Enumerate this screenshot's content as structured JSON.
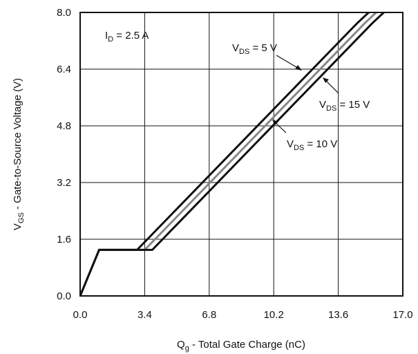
{
  "chart_data": {
    "type": "line",
    "title": "",
    "xlabel": {
      "main": "Q",
      "sub": "g",
      "rest": " - Total Gate Charge (nC)"
    },
    "ylabel": {
      "main": "V",
      "sub": "GS",
      "rest": " - Gate-to-Source Voltage (V)"
    },
    "xlim": [
      0.0,
      17.0
    ],
    "ylim": [
      0.0,
      8.0
    ],
    "x_ticks": [
      "0.0",
      "3.4",
      "6.8",
      "10.2",
      "13.6",
      "17.0"
    ],
    "y_ticks": [
      "0.0",
      "1.6",
      "3.2",
      "4.8",
      "6.4",
      "8.0"
    ],
    "grid": true,
    "legend": "none",
    "condition": {
      "main": "I",
      "sub": "D",
      "rest": " = 2.5 A"
    },
    "series": [
      {
        "name": {
          "main": "V",
          "sub": "DS",
          "rest": " = 5 V"
        },
        "color": "#111111",
        "x": [
          0.0,
          1.0,
          3.0,
          14.6,
          15.2
        ],
        "y": [
          0.0,
          1.3,
          1.3,
          7.7,
          8.0
        ]
      },
      {
        "name": {
          "main": "V",
          "sub": "DS",
          "rest": " = 15 V"
        },
        "color": "#888888",
        "x": [
          0.0,
          1.0,
          3.4,
          15.0,
          15.6
        ],
        "y": [
          0.0,
          1.3,
          1.3,
          7.7,
          8.0
        ]
      },
      {
        "name": {
          "main": "V",
          "sub": "DS",
          "rest": " = 10 V"
        },
        "color": "#111111",
        "x": [
          0.0,
          1.0,
          3.8,
          15.4,
          16.0
        ],
        "y": [
          0.0,
          1.3,
          1.3,
          7.7,
          8.0
        ]
      }
    ]
  }
}
